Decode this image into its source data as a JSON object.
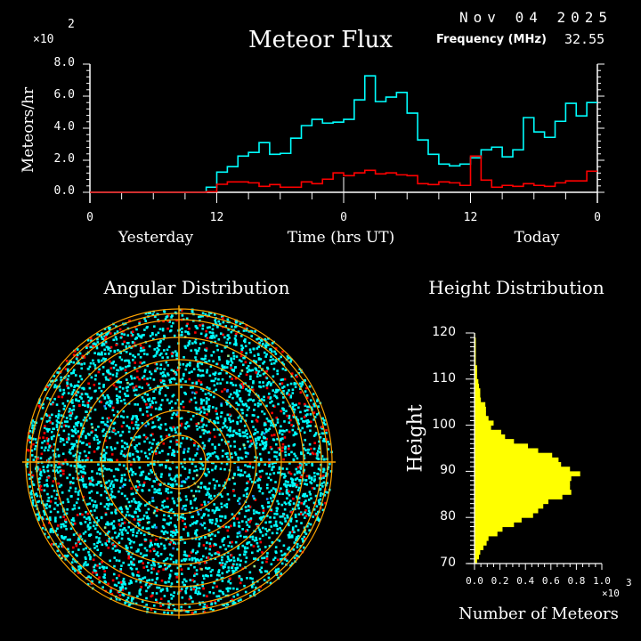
{
  "header": {
    "title": "Meteor Flux",
    "date": "Nov 04 2025",
    "frequency_label": "Frequency (MHz)",
    "frequency_value": "32.55"
  },
  "chart_data": [
    {
      "type": "line",
      "title": "Meteor Flux",
      "ylabel": "Meteors/hr",
      "xlabel": "Time (hrs UT)",
      "y_multiplier": "×10",
      "y_multiplier_exp": "2",
      "ylim": [
        0,
        8
      ],
      "y_ticks": [
        "0.0",
        "2.0",
        "4.0",
        "6.0",
        "8.0"
      ],
      "x_ticks": [
        "0",
        "12",
        "0",
        "12",
        "0"
      ],
      "day_labels": [
        "Yesterday",
        "Today"
      ],
      "step": true,
      "series": [
        {
          "color": "#00ffff",
          "values": [
            0,
            0,
            0,
            0,
            0,
            0,
            0,
            0,
            0,
            0,
            0,
            0.32,
            1.26,
            1.6,
            2.26,
            2.49,
            3.1,
            2.37,
            2.43,
            3.38,
            4.16,
            4.55,
            4.32,
            4.38,
            4.55,
            5.77,
            7.27,
            5.66,
            5.94,
            6.23,
            4.94,
            3.27,
            2.37,
            1.76,
            1.65,
            1.76,
            2.15,
            2.65,
            2.82,
            2.21,
            2.65,
            4.66,
            3.77,
            3.43,
            4.43,
            5.55,
            4.77,
            5.6
          ]
        },
        {
          "color": "#ff0000",
          "values": [
            0,
            0,
            0,
            0,
            0,
            0,
            0,
            0,
            0,
            0,
            0,
            0.04,
            0.5,
            0.65,
            0.65,
            0.59,
            0.37,
            0.48,
            0.32,
            0.32,
            0.65,
            0.54,
            0.82,
            1.21,
            1.04,
            1.21,
            1.37,
            1.15,
            1.21,
            1.09,
            1.04,
            0.54,
            0.48,
            0.65,
            0.59,
            0.43,
            2.26,
            0.76,
            0.32,
            0.43,
            0.37,
            0.54,
            0.43,
            0.37,
            0.59,
            0.71,
            0.71,
            1.32
          ]
        }
      ]
    },
    {
      "type": "scatter",
      "title": "Angular Distribution",
      "colors": {
        "grid": "#ffa500",
        "points": "#00ffff",
        "secondary": "#ff0000",
        "tertiary": "#90ee90"
      }
    },
    {
      "type": "bar",
      "orientation": "horizontal",
      "title": "Height Distribution",
      "ylabel": "Height",
      "xlabel": "Number of Meteors",
      "x_multiplier": "×10",
      "x_multiplier_exp": "3",
      "xlim": [
        0,
        1.0
      ],
      "ylim": [
        70,
        120
      ],
      "x_ticks": [
        "0.0",
        "0.2",
        "0.4",
        "0.6",
        "0.8",
        "1.0"
      ],
      "y_ticks": [
        "70",
        "80",
        "90",
        "100",
        "110",
        "120"
      ],
      "color": "#ffff00",
      "bin_start": 70,
      "bin_width": 1,
      "values": [
        0.02,
        0.035,
        0.045,
        0.07,
        0.095,
        0.11,
        0.18,
        0.22,
        0.31,
        0.37,
        0.46,
        0.5,
        0.54,
        0.58,
        0.69,
        0.76,
        0.75,
        0.75,
        0.76,
        0.83,
        0.75,
        0.68,
        0.66,
        0.61,
        0.5,
        0.42,
        0.31,
        0.24,
        0.21,
        0.13,
        0.15,
        0.11,
        0.09,
        0.09,
        0.085,
        0.05,
        0.045,
        0.045,
        0.035,
        0.03,
        0.02,
        0.02,
        0.02,
        0.01,
        0.01,
        0.01,
        0.01,
        0.01,
        0.01,
        0.005
      ]
    }
  ]
}
